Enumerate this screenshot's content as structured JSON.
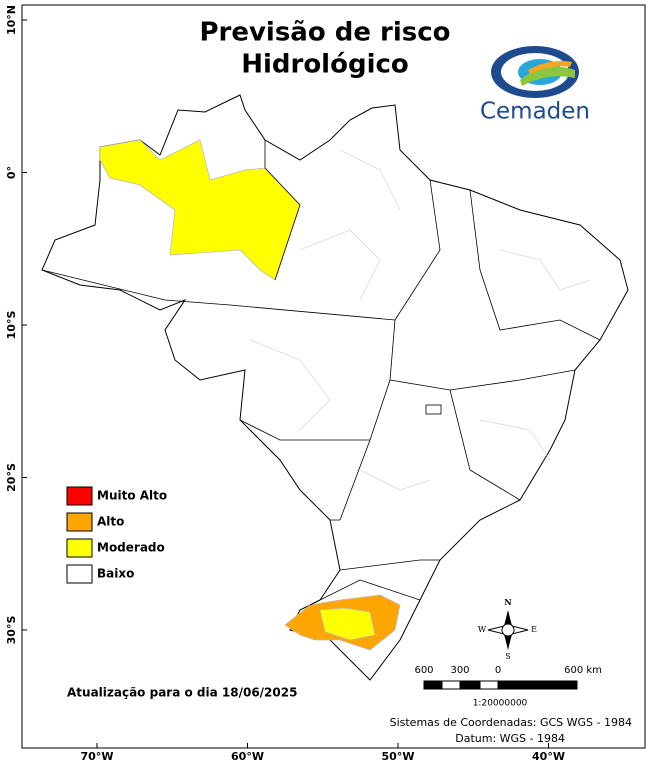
{
  "title_lines": [
    "Previsão de risco",
    "Hidrológico"
  ],
  "logo": "Cemaden",
  "legend": [
    {
      "label": "Muito Alto",
      "color": "#ff0000"
    },
    {
      "label": "Alto",
      "color": "#ffa500"
    },
    {
      "label": "Moderado",
      "color": "#ffff00"
    },
    {
      "label": "Baixo",
      "color": "#ffffff"
    }
  ],
  "lat_labels": [
    "10°N",
    "0°",
    "10°S",
    "20°S",
    "30°S"
  ],
  "lon_labels": [
    "70°W",
    "60°W",
    "50°W",
    "40°W"
  ],
  "scale": {
    "labels": [
      "600",
      "300",
      "0",
      "600 km"
    ],
    "ratio": "1:20000000"
  },
  "compass": {
    "n": "N",
    "s": "S",
    "e": "E",
    "w": "W"
  },
  "update": "Atualização para o dia 18/06/2025",
  "credits": [
    "Sistemas de Coordenadas: GCS WGS - 1984",
    "Datum: WGS - 1984"
  ]
}
